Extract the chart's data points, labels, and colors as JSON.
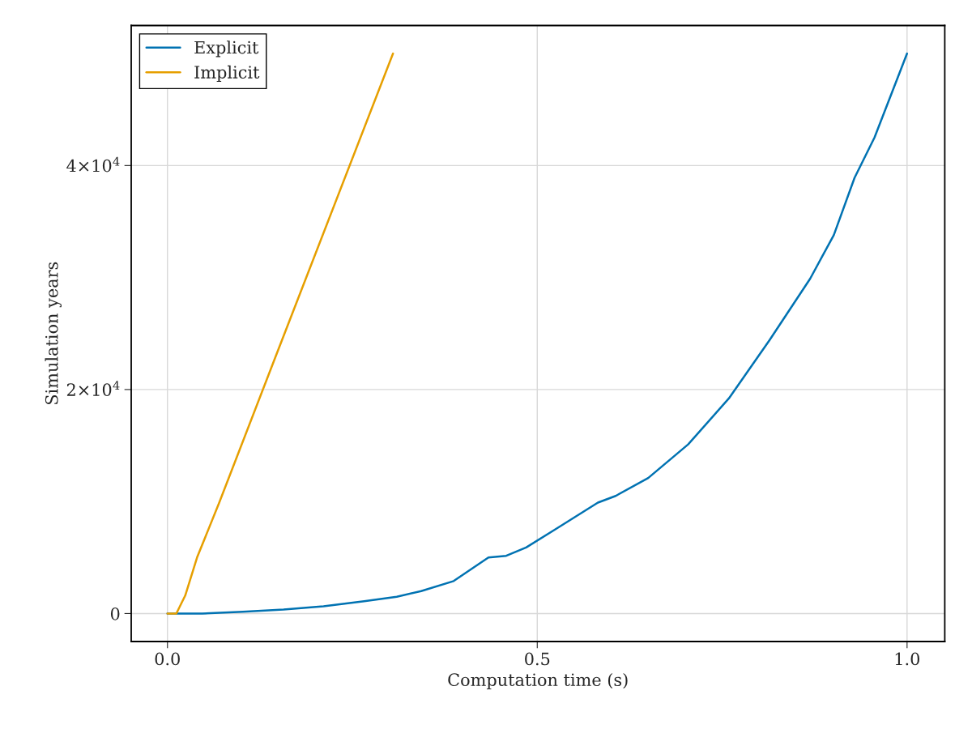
{
  "chart_data": {
    "type": "line",
    "xlabel": "Computation time (s)",
    "ylabel": "Simulation years",
    "series": [
      {
        "name": "Explicit",
        "color": "#0072b2",
        "x": [
          0,
          0.047,
          0.102,
          0.157,
          0.211,
          0.266,
          0.31,
          0.343,
          0.387,
          0.434,
          0.458,
          0.485,
          0.524,
          0.582,
          0.606,
          0.65,
          0.704,
          0.759,
          0.814,
          0.869,
          0.901,
          0.929,
          0.956,
          1.0
        ],
        "values": [
          0,
          0,
          150,
          350,
          650,
          1100,
          1500,
          2000,
          2900,
          5000,
          5150,
          5900,
          7500,
          9900,
          10500,
          12100,
          15100,
          19200,
          24400,
          29900,
          33800,
          38900,
          42500,
          50000
        ]
      },
      {
        "name": "Implicit",
        "color": "#e69f00",
        "x": [
          0,
          0.012,
          0.024,
          0.04,
          0.07,
          0.146,
          0.305
        ],
        "values": [
          0,
          0,
          1600,
          5000,
          9900,
          22900,
          50000
        ]
      }
    ],
    "xlim": [
      -0.049,
      1.051
    ],
    "ylim": [
      -2500,
      52500
    ],
    "xticks": [
      {
        "value": 0,
        "label": "0.0"
      },
      0.5,
      {
        "value": 1,
        "label": "1.0"
      }
    ],
    "yticks": [
      0,
      {
        "value": 20000,
        "label": "2×10$^{4}$"
      },
      {
        "value": 40000,
        "label": "4×10$^{4}$"
      }
    ],
    "grid": true,
    "legend": "top left",
    "line_style": "solid",
    "marker": "none"
  }
}
